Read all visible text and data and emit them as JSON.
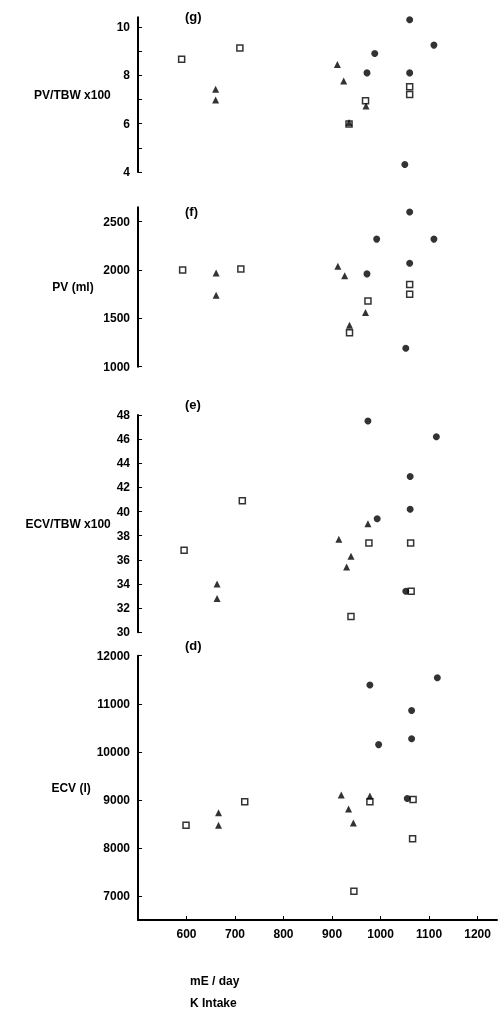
{
  "chart_data": [
    {
      "type": "scatter",
      "title": "(g)",
      "ylabel": "PV/TBW x100",
      "xlim": [
        500,
        1240
      ],
      "ylim": [
        4,
        10.4
      ],
      "yticks": [
        4,
        {
          "value": 5,
          "label": null
        },
        6,
        {
          "value": 7,
          "label": null
        },
        8,
        {
          "value": 9,
          "label": null
        },
        10
      ],
      "tick_labels": "y",
      "grid": false,
      "series": [
        {
          "color": "#000000",
          "marker": "square",
          "x": [
            590,
            710,
            969,
            935,
            1060,
            1060
          ],
          "values": [
            8.66,
            9.13,
            6.95,
            5.99,
            7.53,
            7.21
          ]
        },
        {
          "color": "#000000",
          "marker": "triangle",
          "x": [
            660,
            660,
            911,
            924,
            970,
            935
          ],
          "values": [
            7.42,
            6.98,
            8.45,
            7.76,
            6.73,
            6.05
          ]
        },
        {
          "color": "#000000",
          "marker": "circle",
          "x": [
            1060,
            1110,
            988,
            972,
            1060,
            1050
          ],
          "values": [
            10.3,
            9.25,
            8.9,
            8.1,
            8.1,
            4.31
          ]
        }
      ]
    },
    {
      "type": "scatter",
      "title": "(f)",
      "ylabel": "PV (ml)",
      "xlim": [
        500,
        1240
      ],
      "ylim": [
        1000,
        2650
      ],
      "yticks": [
        1000,
        1500,
        2000,
        2500
      ],
      "tick_labels": "y",
      "grid": false,
      "series": [
        {
          "color": "#000000",
          "marker": "square",
          "x": [
            592,
            712,
            974,
            1060,
            1060,
            936
          ],
          "values": [
            2000,
            2010,
            1680,
            1850,
            1750,
            1350
          ]
        },
        {
          "color": "#000000",
          "marker": "triangle",
          "x": [
            661,
            661,
            912,
            926,
            969,
            936
          ],
          "values": [
            1970,
            1740,
            2040,
            1940,
            1560,
            1430
          ]
        },
        {
          "color": "#000000",
          "marker": "circle",
          "x": [
            1060,
            992,
            1110,
            1060,
            972,
            1052
          ],
          "values": [
            2600,
            2320,
            2320,
            2070,
            1960,
            1190
          ]
        }
      ]
    },
    {
      "type": "scatter",
      "title": "(e)",
      "ylabel": "ECV/TBW x100",
      "xlim": [
        500,
        1240
      ],
      "ylim": [
        30,
        48
      ],
      "yticks": [
        30,
        32,
        34,
        36,
        38,
        40,
        42,
        44,
        46,
        48
      ],
      "tick_labels": "y",
      "grid": false,
      "series": [
        {
          "color": "#000000",
          "marker": "square",
          "x": [
            595,
            715,
            976,
            1062,
            1063,
            939
          ],
          "values": [
            36.8,
            40.9,
            37.4,
            37.4,
            33.4,
            31.3
          ]
        },
        {
          "color": "#000000",
          "marker": "triangle",
          "x": [
            663,
            663,
            914,
            939,
            930,
            974
          ],
          "values": [
            34.0,
            32.8,
            37.7,
            36.3,
            35.4,
            39.0
          ]
        },
        {
          "color": "#000000",
          "marker": "circle",
          "x": [
            974,
            1115,
            1061,
            1061,
            993,
            1052
          ],
          "values": [
            47.5,
            46.2,
            42.9,
            40.2,
            39.4,
            33.4
          ]
        }
      ]
    },
    {
      "type": "scatter",
      "title": "(d)",
      "ylabel": "ECV (l)",
      "xlabel": "mE / day\nK Intake",
      "xlim": [
        500,
        1240
      ],
      "ylim": [
        6500,
        12000
      ],
      "xticks": [
        600,
        700,
        800,
        900,
        1000,
        1100,
        1200
      ],
      "yticks": [
        7000,
        8000,
        9000,
        10000,
        11000,
        12000
      ],
      "grid": false,
      "series": [
        {
          "color": "#000000",
          "marker": "square",
          "x": [
            599,
            720,
            978,
            1067,
            1066,
            945
          ],
          "values": [
            8470,
            8960,
            8960,
            9010,
            8190,
            7100
          ]
        },
        {
          "color": "#000000",
          "marker": "triangle",
          "x": [
            919,
            934,
            944,
            978,
            666,
            666
          ],
          "values": [
            9100,
            8810,
            8520,
            9080,
            8730,
            8470
          ]
        },
        {
          "color": "#000000",
          "marker": "circle",
          "x": [
            978,
            1117,
            1064,
            1064,
            996,
            1055
          ],
          "values": [
            11390,
            11540,
            10860,
            10270,
            10150,
            9030
          ]
        }
      ]
    }
  ]
}
